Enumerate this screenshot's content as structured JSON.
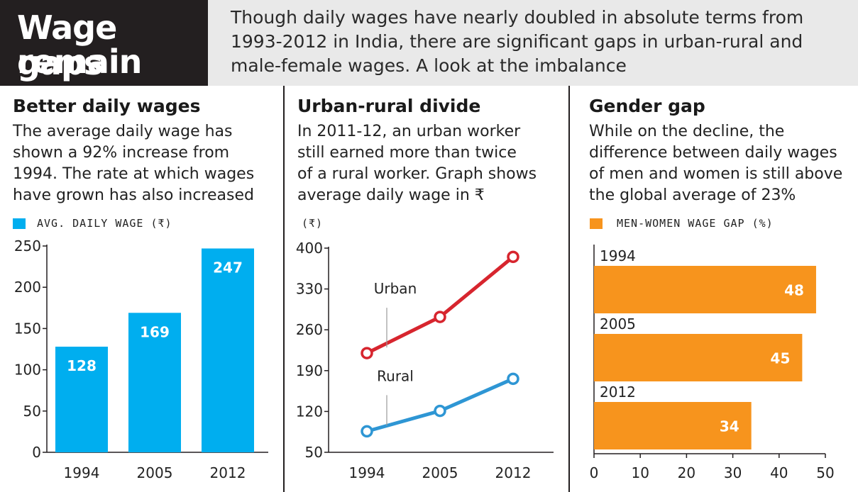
{
  "header": {
    "title_lines": [
      "Wage gaps",
      "remain"
    ],
    "subtitle_lines": [
      "Though daily wages have nearly doubled in absolute terms from",
      "1993-2012 in India, there are significant gaps in urban-rural and",
      "male-female wages. A look at the imbalance"
    ]
  },
  "panels": [
    {
      "title": "Better daily wages",
      "desc_lines": [
        "The average daily wage has",
        "shown a 92% increase from",
        "1994. The rate at which wages",
        "have grown has also increased"
      ],
      "legend": "AVG. DAILY WAGE (₹)"
    },
    {
      "title": "Urban-rural divide",
      "desc_lines": [
        "In 2011-12, an urban worker",
        "still earned more than twice",
        "of a rural worker. Graph shows",
        "average daily wage in ₹"
      ],
      "unit": "(₹)"
    },
    {
      "title": "Gender gap",
      "desc_lines": [
        "While on the decline, the",
        "difference between daily wages",
        "of men and women is still above",
        "the global average of 23%"
      ],
      "legend": "MEN-WOMEN WAGE GAP (%)"
    }
  ],
  "colors": {
    "title_bg": "#231f20",
    "subtitle_bg": "#e9e9e9",
    "bar_blue": "#00aeef",
    "urban_red": "#d7252e",
    "rural_blue": "#2e96d4",
    "bar_orange": "#f7941d"
  },
  "chart_data": [
    {
      "type": "bar",
      "categories": [
        "1994",
        "2005",
        "2012"
      ],
      "values": [
        128,
        169,
        247
      ],
      "ylim": [
        0,
        250
      ],
      "yticks": [
        0,
        50,
        100,
        150,
        200,
        250
      ],
      "legend": "AVG. DAILY WAGE (₹)",
      "color": "#00aeef"
    },
    {
      "type": "line",
      "x": [
        "1994",
        "2005",
        "2012"
      ],
      "ylim": [
        50,
        400
      ],
      "yticks": [
        50,
        120,
        190,
        260,
        330,
        400
      ],
      "ylabel": "(₹)",
      "series": [
        {
          "name": "Urban",
          "values": [
            220,
            282,
            385
          ],
          "color": "#d7252e"
        },
        {
          "name": "Rural",
          "values": [
            86,
            121,
            176
          ],
          "color": "#2e96d4"
        }
      ]
    },
    {
      "type": "bar",
      "orientation": "horizontal",
      "categories": [
        "1994",
        "2005",
        "2012"
      ],
      "values": [
        48,
        45,
        34
      ],
      "xlim": [
        0,
        50
      ],
      "xticks": [
        0,
        10,
        20,
        30,
        40,
        50
      ],
      "legend": "MEN-WOMEN WAGE GAP (%)",
      "color": "#f7941d"
    }
  ]
}
